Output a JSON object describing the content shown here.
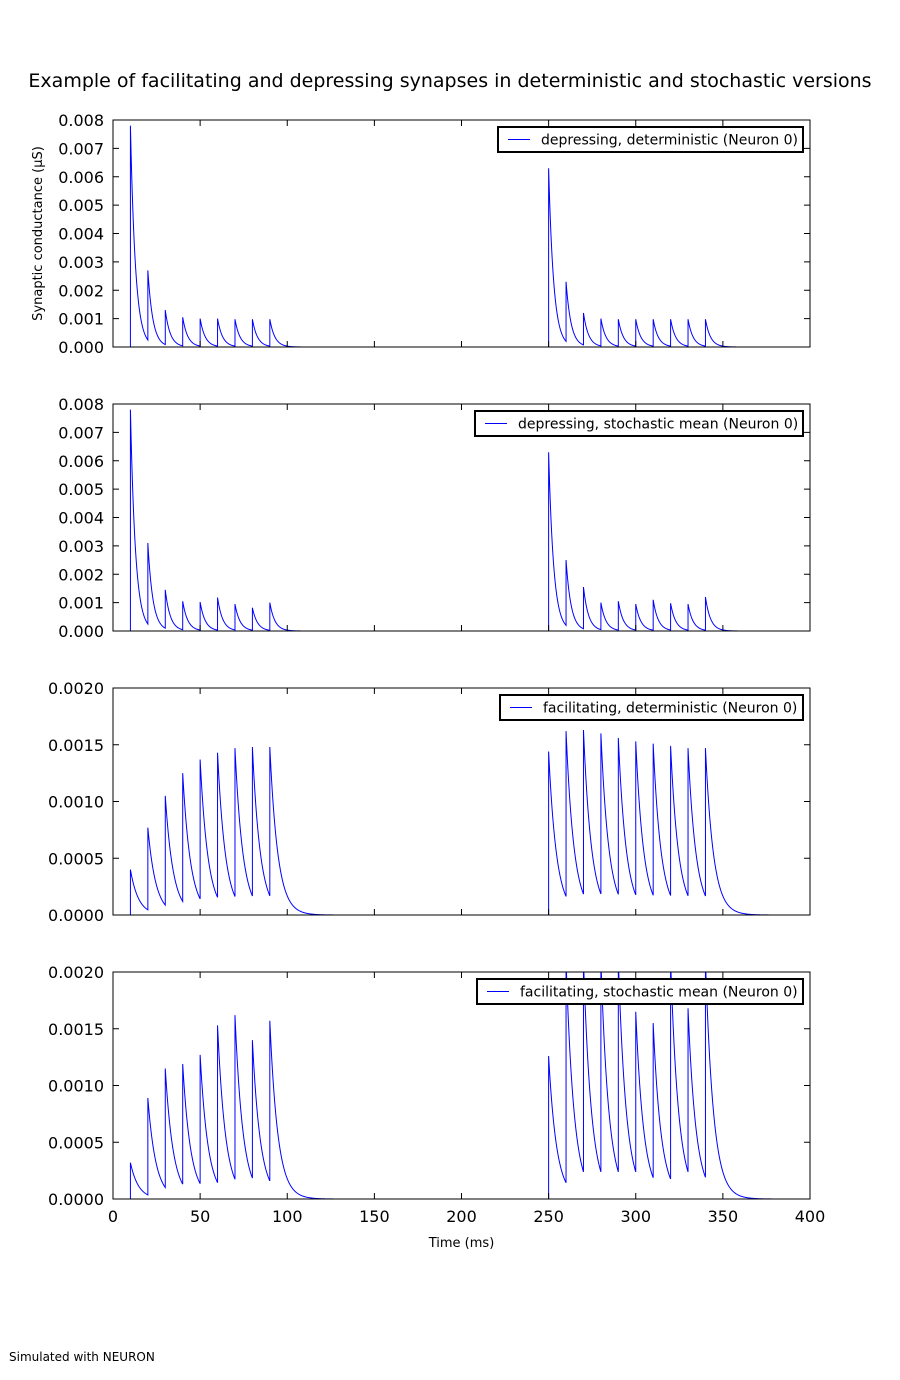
{
  "title": "Example of facilitating and depressing synapses in deterministic and stochastic versions",
  "footer": "Simulated with NEURON",
  "colors": {
    "line": "#0000ff",
    "axis": "#000000",
    "background": "#ffffff"
  },
  "chart_data": [
    {
      "type": "line",
      "legend": "depressing, deterministic (Neuron 0)",
      "legend_placement": "top-right",
      "ylabel": "Synaptic conductance (µS)",
      "xlabel": "",
      "xlim": [
        0,
        400
      ],
      "ylim": [
        0,
        0.008
      ],
      "yticks": [
        "0.000",
        "0.001",
        "0.002",
        "0.003",
        "0.004",
        "0.005",
        "0.006",
        "0.007",
        "0.008"
      ],
      "xticks": [],
      "grid": false,
      "tau_ms": 2.9,
      "spike_times_ms": [
        10,
        20,
        30,
        40,
        50,
        60,
        70,
        80,
        90,
        250,
        260,
        270,
        280,
        290,
        300,
        310,
        320,
        330,
        340
      ],
      "peak_values": [
        0.0078,
        0.0027,
        0.0013,
        0.00105,
        0.001,
        0.001,
        0.00098,
        0.00098,
        0.00098,
        0.0063,
        0.0023,
        0.0012,
        0.001,
        0.00098,
        0.00098,
        0.00098,
        0.00098,
        0.00098,
        0.00098
      ]
    },
    {
      "type": "line",
      "legend": "depressing, stochastic mean (Neuron 0)",
      "legend_placement": "top-right",
      "ylabel": "",
      "xlabel": "",
      "xlim": [
        0,
        400
      ],
      "ylim": [
        0,
        0.008
      ],
      "yticks": [
        "0.000",
        "0.001",
        "0.002",
        "0.003",
        "0.004",
        "0.005",
        "0.006",
        "0.007",
        "0.008"
      ],
      "xticks": [],
      "grid": false,
      "tau_ms": 2.9,
      "spike_times_ms": [
        10,
        20,
        30,
        40,
        50,
        60,
        70,
        80,
        90,
        250,
        260,
        270,
        280,
        290,
        300,
        310,
        320,
        330,
        340
      ],
      "peak_values": [
        0.0078,
        0.0031,
        0.00145,
        0.00105,
        0.00102,
        0.00118,
        0.00095,
        0.00082,
        0.001,
        0.0063,
        0.0025,
        0.00155,
        0.001,
        0.00105,
        0.00095,
        0.0011,
        0.00098,
        0.00095,
        0.0012
      ]
    },
    {
      "type": "line",
      "legend": "facilitating, deterministic (Neuron 0)",
      "legend_placement": "top-right",
      "ylabel": "",
      "xlabel": "",
      "xlim": [
        0,
        400
      ],
      "ylim": [
        0,
        0.002
      ],
      "yticks": [
        "0.0000",
        "0.0005",
        "0.0010",
        "0.0015",
        "0.0020"
      ],
      "xticks": [],
      "grid": false,
      "tau_ms": 4.6,
      "spike_times_ms": [
        10,
        20,
        30,
        40,
        50,
        60,
        70,
        80,
        90,
        250,
        260,
        270,
        280,
        290,
        300,
        310,
        320,
        330,
        340
      ],
      "peak_values": [
        0.0004,
        0.00077,
        0.00105,
        0.00125,
        0.00137,
        0.00143,
        0.00147,
        0.00148,
        0.00148,
        0.00144,
        0.00162,
        0.00163,
        0.0016,
        0.00156,
        0.00153,
        0.00151,
        0.00149,
        0.00147,
        0.00147
      ]
    },
    {
      "type": "line",
      "legend": "facilitating, stochastic mean (Neuron 0)",
      "legend_placement": "top-right",
      "ylabel": "",
      "xlabel": "Time (ms)",
      "xlim": [
        0,
        400
      ],
      "ylim": [
        0,
        0.002
      ],
      "yticks": [
        "0.0000",
        "0.0005",
        "0.0010",
        "0.0015",
        "0.0020"
      ],
      "xticks": [
        "0",
        "50",
        "100",
        "150",
        "200",
        "250",
        "300",
        "350",
        "400"
      ],
      "grid": false,
      "tau_ms": 4.6,
      "spike_times_ms": [
        10,
        20,
        30,
        40,
        50,
        60,
        70,
        80,
        90,
        250,
        260,
        270,
        280,
        290,
        300,
        310,
        320,
        330,
        340
      ],
      "peak_values": [
        0.00032,
        0.00089,
        0.00115,
        0.00119,
        0.00127,
        0.00153,
        0.00162,
        0.0014,
        0.00157,
        0.00126,
        0.0021,
        0.0021,
        0.0021,
        0.0021,
        0.00165,
        0.00155,
        0.0021,
        0.00168,
        0.0021
      ]
    }
  ]
}
